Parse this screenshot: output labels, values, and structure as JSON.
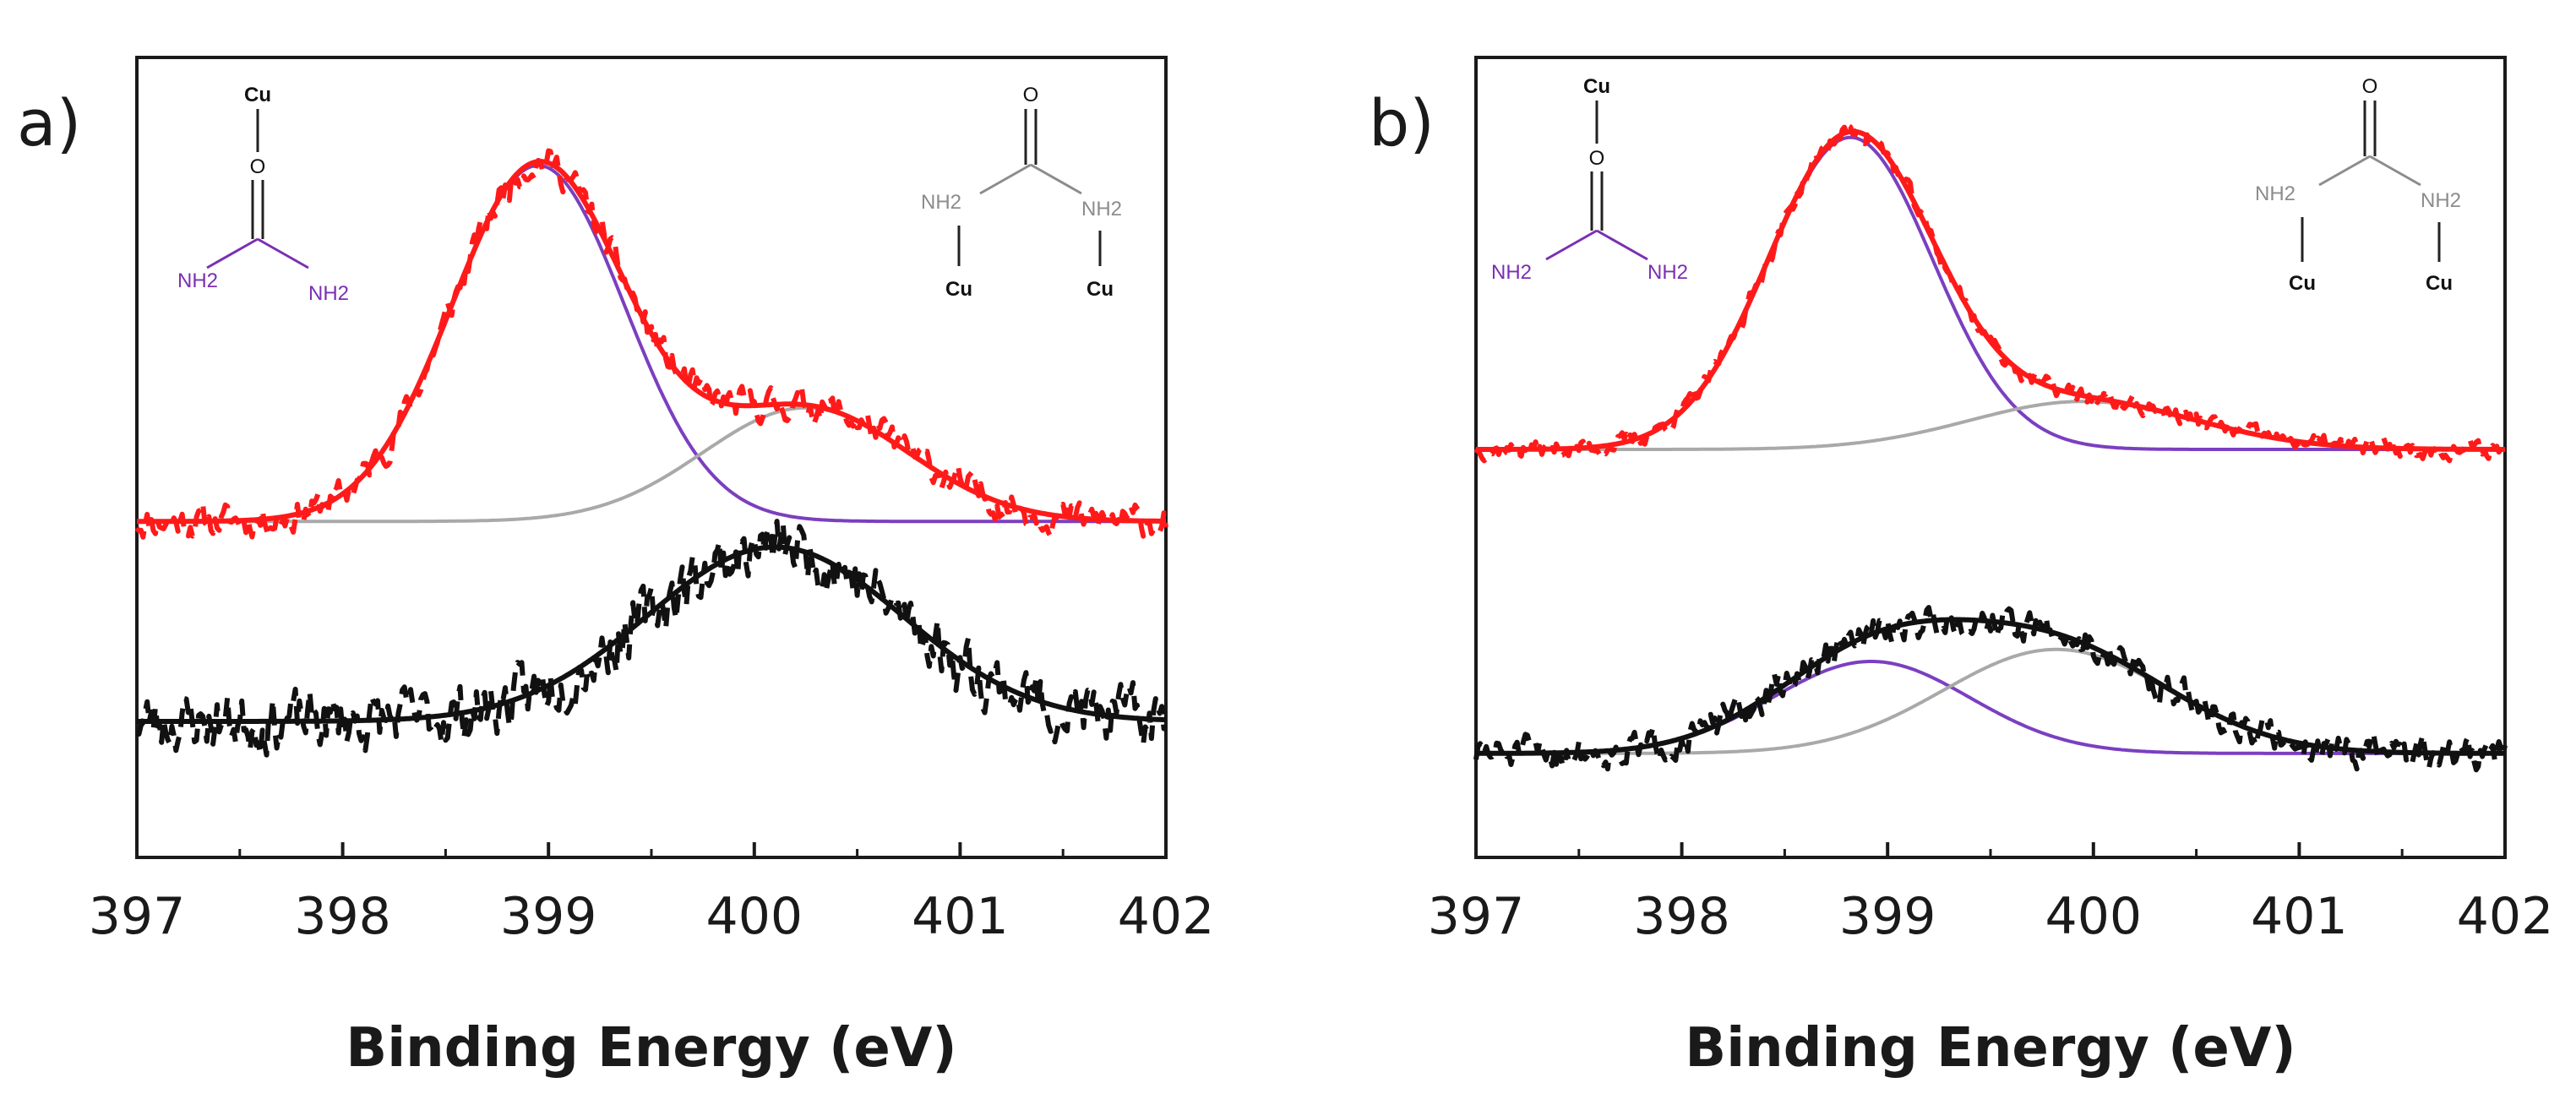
{
  "colors": {
    "data_red": "#ff1a1a",
    "fit_red": "#ff1a1a",
    "data_black": "#111111",
    "fit_black": "#111111",
    "component_purple": "#7b3fc0",
    "component_gray": "#a9a9a9",
    "nh2_purple": "#7b2fb3",
    "nh2_gray": "#8c8c8c"
  },
  "chart_data": [
    {
      "type": "line",
      "panel_label": "a)",
      "xlabel": "Binding Energy (eV)",
      "ylabel": "",
      "xlim": [
        397,
        402
      ],
      "ylim": [
        0,
        1
      ],
      "x_ticks": [
        397,
        398,
        399,
        400,
        401,
        402
      ],
      "x_tick_labels": [
        "397",
        "398",
        "399",
        "400",
        "401",
        "402"
      ],
      "grid": false,
      "structures": [
        {
          "kind": "O-bound",
          "labels": [
            "Cu",
            "O",
            "NH2",
            "NH2"
          ]
        },
        {
          "kind": "N-bound",
          "labels": [
            "O",
            "NH2",
            "NH2",
            "Cu",
            "Cu"
          ]
        }
      ],
      "series": [
        {
          "name": "upper-data",
          "style": "dashed",
          "color": "data_red",
          "baseline": 0.42,
          "noise": 0.022,
          "seed": 11,
          "peaks": [
            {
              "center": 398.95,
              "height": 0.445,
              "sigma": 0.42
            },
            {
              "center": 400.25,
              "height": 0.142,
              "sigma": 0.5
            }
          ]
        },
        {
          "name": "upper-fit",
          "style": "solid",
          "color": "fit_red",
          "baseline": 0.42,
          "peaks": [
            {
              "center": 398.95,
              "height": 0.445,
              "sigma": 0.42
            },
            {
              "center": 400.25,
              "height": 0.142,
              "sigma": 0.5
            }
          ]
        },
        {
          "name": "upper-component-1",
          "style": "solid",
          "color": "component_purple",
          "baseline": 0.42,
          "peaks": [
            {
              "center": 398.95,
              "height": 0.445,
              "sigma": 0.42
            }
          ]
        },
        {
          "name": "upper-component-2",
          "style": "solid",
          "color": "component_gray",
          "baseline": 0.42,
          "peaks": [
            {
              "center": 400.25,
              "height": 0.142,
              "sigma": 0.5
            }
          ]
        },
        {
          "name": "lower-data",
          "style": "dashed",
          "color": "data_black",
          "baseline": 0.17,
          "noise": 0.04,
          "seed": 23,
          "peaks": [
            {
              "center": 400.1,
              "height": 0.218,
              "sigma": 0.62
            }
          ]
        },
        {
          "name": "lower-fit",
          "style": "solid",
          "color": "fit_black",
          "baseline": 0.17,
          "peaks": [
            {
              "center": 400.1,
              "height": 0.218,
              "sigma": 0.62
            }
          ]
        }
      ]
    },
    {
      "type": "line",
      "panel_label": "b)",
      "xlabel": "Binding Energy (eV)",
      "ylabel": "",
      "xlim": [
        397,
        402
      ],
      "ylim": [
        0,
        1
      ],
      "x_ticks": [
        397,
        398,
        399,
        400,
        401,
        402
      ],
      "x_tick_labels": [
        "397",
        "398",
        "399",
        "400",
        "401",
        "402"
      ],
      "grid": false,
      "structures": [
        {
          "kind": "O-bound",
          "labels": [
            "Cu",
            "O",
            "NH2",
            "NH2"
          ]
        },
        {
          "kind": "N-bound",
          "labels": [
            "O",
            "NH2",
            "NH2",
            "Cu",
            "Cu"
          ]
        }
      ],
      "series": [
        {
          "name": "upper-data",
          "style": "dashed",
          "color": "data_red",
          "baseline": 0.51,
          "noise": 0.012,
          "seed": 37,
          "peaks": [
            {
              "center": 398.82,
              "height": 0.39,
              "sigma": 0.4
            },
            {
              "center": 399.95,
              "height": 0.06,
              "sigma": 0.55
            }
          ]
        },
        {
          "name": "upper-fit",
          "style": "solid",
          "color": "fit_red",
          "baseline": 0.51,
          "peaks": [
            {
              "center": 398.82,
              "height": 0.39,
              "sigma": 0.4
            },
            {
              "center": 399.95,
              "height": 0.06,
              "sigma": 0.55
            }
          ]
        },
        {
          "name": "upper-component-1",
          "style": "solid",
          "color": "component_purple",
          "baseline": 0.51,
          "peaks": [
            {
              "center": 398.82,
              "height": 0.39,
              "sigma": 0.4
            }
          ]
        },
        {
          "name": "upper-component-2",
          "style": "solid",
          "color": "component_gray",
          "baseline": 0.51,
          "peaks": [
            {
              "center": 399.95,
              "height": 0.06,
              "sigma": 0.55
            }
          ]
        },
        {
          "name": "lower-data",
          "style": "dashed",
          "color": "data_black",
          "baseline": 0.13,
          "noise": 0.022,
          "seed": 51,
          "peaks": [
            {
              "center": 398.92,
              "height": 0.115,
              "sigma": 0.48
            },
            {
              "center": 399.82,
              "height": 0.13,
              "sigma": 0.55
            }
          ]
        },
        {
          "name": "lower-fit",
          "style": "solid",
          "color": "fit_black",
          "baseline": 0.13,
          "peaks": [
            {
              "center": 398.92,
              "height": 0.115,
              "sigma": 0.48
            },
            {
              "center": 399.82,
              "height": 0.13,
              "sigma": 0.55
            }
          ]
        },
        {
          "name": "lower-component-1",
          "style": "solid",
          "color": "component_purple",
          "baseline": 0.13,
          "peaks": [
            {
              "center": 398.92,
              "height": 0.115,
              "sigma": 0.48
            }
          ]
        },
        {
          "name": "lower-component-2",
          "style": "solid",
          "color": "component_gray",
          "baseline": 0.13,
          "peaks": [
            {
              "center": 399.82,
              "height": 0.13,
              "sigma": 0.55
            }
          ]
        }
      ]
    }
  ]
}
